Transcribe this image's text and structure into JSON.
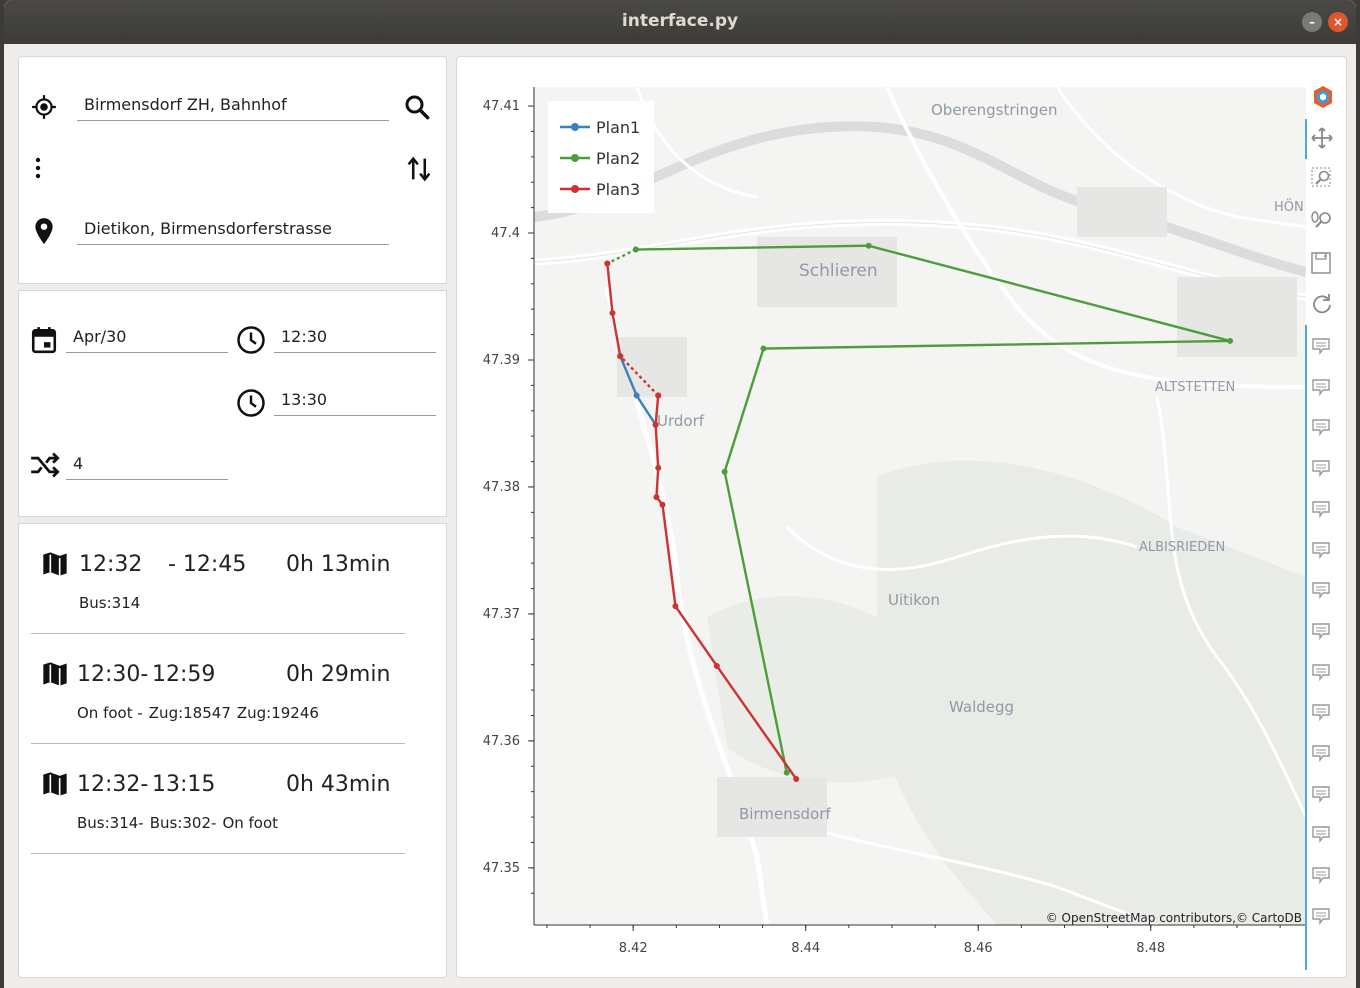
{
  "window": {
    "title": "interface.py",
    "min_glyph": "–",
    "close_glyph": "×"
  },
  "route": {
    "origin": "Birmensdorf ZH, Bahnhof",
    "destination": "Dietikon, Birmensdorferstrasse"
  },
  "time": {
    "date": "Apr/30",
    "start_time": "12:30",
    "end_time": "13:30",
    "max_transfers": "4"
  },
  "results": [
    {
      "dep": "12:32",
      "arr": "- 12:45",
      "duration": "0h 13min",
      "legs": [
        "Bus:314"
      ]
    },
    {
      "dep": "12:30-",
      "arr": "12:59",
      "duration": "0h 29min",
      "legs": [
        "On foot -",
        "Zug:18547",
        "Zug:19246"
      ]
    },
    {
      "dep": "12:32-",
      "arr": "13:15",
      "duration": "0h 43min",
      "legs": [
        "Bus:314-",
        "Bus:302-",
        "On foot"
      ]
    }
  ],
  "map": {
    "place_labels": [
      "Oberengstringen",
      "Schlieren",
      "HÖN",
      "ALTSTETTEN",
      "Urdorf",
      "ALBISRIEDEN",
      "Uitikon",
      "Waldegg",
      "Birmensdorf"
    ],
    "attribution": "© OpenStreetMap contributors,© CartoDB",
    "toolbar_icons": [
      "bokeh-logo-icon",
      "pan-icon",
      "box-zoom-icon",
      "wheel-zoom-icon",
      "save-icon",
      "reset-icon",
      "hover-icon"
    ]
  },
  "chart_data": {
    "type": "line",
    "x_ticks": [
      "8.42",
      "8.44",
      "8.46",
      "8.48"
    ],
    "y_ticks": [
      "47.41",
      "47.4",
      "47.39",
      "47.38",
      "47.37",
      "47.36",
      "47.35"
    ],
    "xlim": [
      8.4085,
      8.498
    ],
    "ylim": [
      47.3455,
      47.4115
    ],
    "legend_position": "top-left",
    "series": [
      {
        "name": "Plan1",
        "color": "#3a7fbf",
        "dashed": false,
        "points": [
          [
            8.4226,
            47.3849
          ],
          [
            8.4204,
            47.3872
          ],
          [
            8.4185,
            47.3903
          ]
        ]
      },
      {
        "name": "Plan2",
        "color": "#4d9e3a",
        "dashed": false,
        "points": [
          [
            8.4378,
            47.3575
          ],
          [
            8.4306,
            47.3812
          ],
          [
            8.4351,
            47.3909
          ],
          [
            8.4892,
            47.3915
          ],
          [
            8.4473,
            47.399
          ],
          [
            8.4203,
            47.3987
          ]
        ]
      },
      {
        "name": "Plan2",
        "color": "#4d9e3a",
        "dashed": true,
        "points": [
          [
            8.4203,
            47.3987
          ],
          [
            8.417,
            47.3976
          ]
        ]
      },
      {
        "name": "Plan3",
        "color": "#cc3333",
        "dashed": false,
        "points": [
          [
            8.4389,
            47.357
          ],
          [
            8.4297,
            47.3659
          ],
          [
            8.4249,
            47.3706
          ],
          [
            8.4234,
            47.3786
          ],
          [
            8.4227,
            47.3792
          ],
          [
            8.4229,
            47.3815
          ],
          [
            8.4226,
            47.3849
          ],
          [
            8.4229,
            47.3872
          ]
        ]
      },
      {
        "name": "Plan3",
        "color": "#cc3333",
        "dashed": true,
        "points": [
          [
            8.4229,
            47.3872
          ],
          [
            8.4185,
            47.3903
          ]
        ]
      },
      {
        "name": "Plan3",
        "color": "#cc3333",
        "dashed": false,
        "points": [
          [
            8.4185,
            47.3903
          ],
          [
            8.4176,
            47.3937
          ],
          [
            8.417,
            47.3976
          ]
        ]
      }
    ]
  }
}
